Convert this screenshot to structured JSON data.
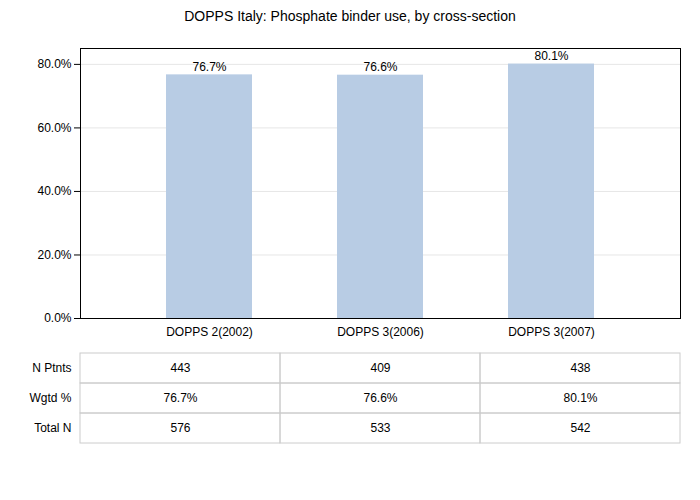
{
  "chart_data": {
    "type": "bar",
    "title": "DOPPS Italy: Phosphate binder use, by cross-section",
    "categories": [
      "DOPPS 2(2002)",
      "DOPPS 3(2006)",
      "DOPPS 3(2007)"
    ],
    "values": [
      76.7,
      76.6,
      80.1
    ],
    "value_labels": [
      "76.7%",
      "76.6%",
      "80.1%"
    ],
    "data_labels": true,
    "color": "#b8cce4",
    "ylim": [
      0,
      85
    ],
    "yticks": [
      {
        "value": 0,
        "label": "0.0%"
      },
      {
        "value": 20,
        "label": "20.0%"
      },
      {
        "value": 40,
        "label": "40.0%"
      },
      {
        "value": 60,
        "label": "60.0%"
      },
      {
        "value": 80,
        "label": "80.0%"
      }
    ],
    "grid": true,
    "table": [
      {
        "label": "N Ptnts",
        "values": [
          "443",
          "409",
          "438"
        ]
      },
      {
        "label": "Wgtd %",
        "values": [
          "76.7%",
          "76.6%",
          "80.1%"
        ]
      },
      {
        "label": "Total N",
        "values": [
          "576",
          "533",
          "542"
        ]
      }
    ]
  }
}
